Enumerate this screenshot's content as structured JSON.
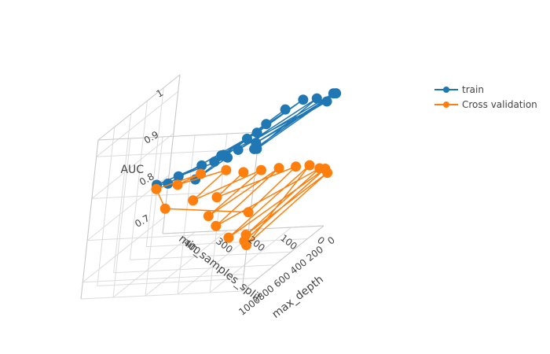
{
  "chart_data": {
    "type": "scatter3d",
    "axes": {
      "x": {
        "title": "max_depth",
        "ticks": [
          "0",
          "200",
          "400",
          "600",
          "800",
          "1000"
        ]
      },
      "y": {
        "title": "min_samples_split",
        "ticks": [
          "0",
          "100",
          "200",
          "300",
          "400"
        ]
      },
      "z": {
        "title": "AUC",
        "ticks": [
          "0.7",
          "0.8",
          "0.9",
          "1"
        ]
      }
    },
    "legend_position": "top-right",
    "series": [
      {
        "name": "train",
        "color": "#1f77b4",
        "points": [
          {
            "x": 1000,
            "y": 10,
            "z": 1.0
          },
          {
            "x": 20,
            "y": 10,
            "z": 0.98
          },
          {
            "x": 1000,
            "y": 60,
            "z": 1.0
          },
          {
            "x": 20,
            "y": 60,
            "z": 0.97
          },
          {
            "x": 1000,
            "y": 2,
            "z": 1.0
          },
          {
            "x": 20,
            "y": 2,
            "z": 0.98
          },
          {
            "x": 900,
            "y": 30,
            "z": 1.0
          },
          {
            "x": 10,
            "y": 30,
            "z": 0.96
          },
          {
            "x": 800,
            "y": 150,
            "z": 0.96
          },
          {
            "x": 40,
            "y": 150,
            "z": 0.95
          },
          {
            "x": 700,
            "y": 200,
            "z": 0.93
          },
          {
            "x": 60,
            "y": 200,
            "z": 0.92
          },
          {
            "x": 500,
            "y": 300,
            "z": 0.86
          },
          {
            "x": 100,
            "y": 300,
            "z": 0.85
          },
          {
            "x": 300,
            "y": 400,
            "z": 0.84
          },
          {
            "x": 5,
            "y": 400,
            "z": 0.82
          },
          {
            "x": 150,
            "y": 500,
            "z": 0.8
          },
          {
            "x": 2,
            "y": 500,
            "z": 0.78
          },
          {
            "x": 600,
            "y": 100,
            "z": 0.98
          },
          {
            "x": 30,
            "y": 100,
            "z": 0.97
          },
          {
            "x": 400,
            "y": 250,
            "z": 0.9
          },
          {
            "x": 80,
            "y": 250,
            "z": 0.89
          }
        ]
      },
      {
        "name": "Cross validation",
        "color": "#ff7f0e",
        "points": [
          {
            "x": 1000,
            "y": 10,
            "z": 0.78
          },
          {
            "x": 20,
            "y": 10,
            "z": 0.8
          },
          {
            "x": 1000,
            "y": 60,
            "z": 0.79
          },
          {
            "x": 20,
            "y": 60,
            "z": 0.81
          },
          {
            "x": 1000,
            "y": 2,
            "z": 0.77
          },
          {
            "x": 20,
            "y": 2,
            "z": 0.79
          },
          {
            "x": 900,
            "y": 30,
            "z": 0.78
          },
          {
            "x": 10,
            "y": 30,
            "z": 0.8
          },
          {
            "x": 800,
            "y": 150,
            "z": 0.79
          },
          {
            "x": 40,
            "y": 150,
            "z": 0.81
          },
          {
            "x": 700,
            "y": 200,
            "z": 0.8
          },
          {
            "x": 60,
            "y": 200,
            "z": 0.81
          },
          {
            "x": 500,
            "y": 300,
            "z": 0.81
          },
          {
            "x": 100,
            "y": 300,
            "z": 0.82
          },
          {
            "x": 300,
            "y": 400,
            "z": 0.82
          },
          {
            "x": 5,
            "y": 400,
            "z": 0.8
          },
          {
            "x": 150,
            "y": 500,
            "z": 0.79
          },
          {
            "x": 2,
            "y": 500,
            "z": 0.72
          },
          {
            "x": 600,
            "y": 100,
            "z": 0.79
          },
          {
            "x": 30,
            "y": 100,
            "z": 0.81
          },
          {
            "x": 400,
            "y": 250,
            "z": 0.8
          },
          {
            "x": 80,
            "y": 250,
            "z": 0.81
          }
        ]
      }
    ]
  }
}
